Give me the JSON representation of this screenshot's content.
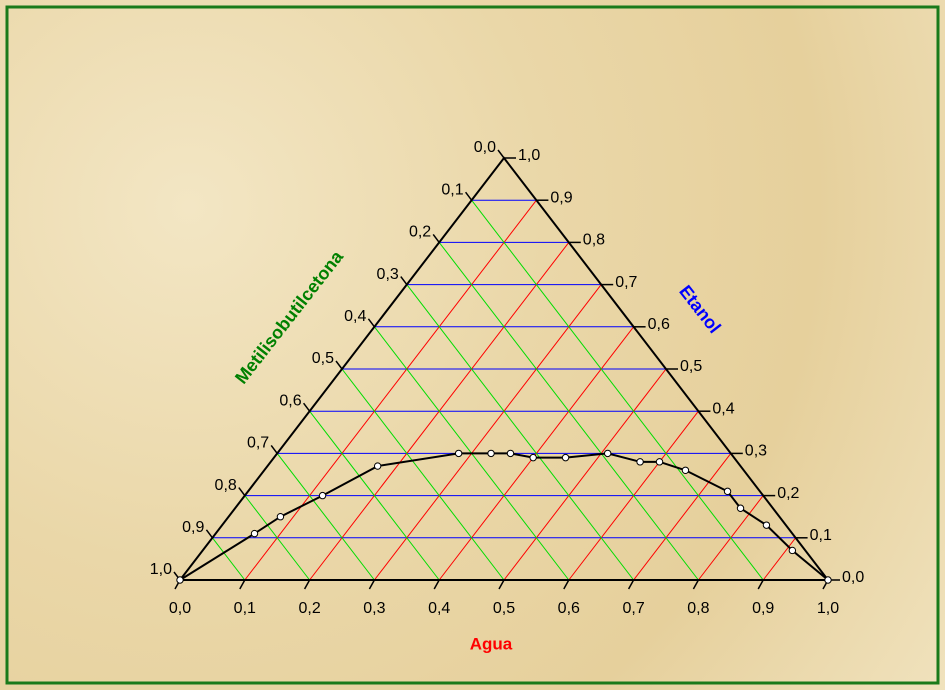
{
  "chart_data": {
    "type": "ternary",
    "axes": {
      "bottom": {
        "label": "Agua",
        "color": "#ff0000",
        "grid_color": "#ff0000",
        "ticks": [
          {
            "value": 0,
            "label": "0,0"
          },
          {
            "value": 0.1,
            "label": "0,1"
          },
          {
            "value": 0.2,
            "label": "0,2"
          },
          {
            "value": 0.3,
            "label": "0,3"
          },
          {
            "value": 0.4,
            "label": "0,4"
          },
          {
            "value": 0.5,
            "label": "0,5"
          },
          {
            "value": 0.6,
            "label": "0,6"
          },
          {
            "value": 0.7,
            "label": "0,7"
          },
          {
            "value": 0.8,
            "label": "0,8"
          },
          {
            "value": 0.9,
            "label": "0,9"
          },
          {
            "value": 1,
            "label": "1,0"
          }
        ]
      },
      "right": {
        "label": "Etanol",
        "color": "#0000ff",
        "grid_color": "#0000ff",
        "ticks": [
          {
            "value": 0,
            "label": "0,0"
          },
          {
            "value": 0.1,
            "label": "0,1"
          },
          {
            "value": 0.2,
            "label": "0,2"
          },
          {
            "value": 0.3,
            "label": "0,3"
          },
          {
            "value": 0.4,
            "label": "0,4"
          },
          {
            "value": 0.5,
            "label": "0,5"
          },
          {
            "value": 0.6,
            "label": "0,6"
          },
          {
            "value": 0.7,
            "label": "0,7"
          },
          {
            "value": 0.8,
            "label": "0,8"
          },
          {
            "value": 0.9,
            "label": "0,9"
          },
          {
            "value": 1,
            "label": "1,0"
          }
        ]
      },
      "left": {
        "label": "Metilisobutilcetona",
        "color": "#008000",
        "grid_color": "#00dd00",
        "ticks": [
          {
            "value": 0,
            "label": "0,0"
          },
          {
            "value": 0.1,
            "label": "0,1"
          },
          {
            "value": 0.2,
            "label": "0,2"
          },
          {
            "value": 0.3,
            "label": "0,3"
          },
          {
            "value": 0.4,
            "label": "0,4"
          },
          {
            "value": 0.5,
            "label": "0,5"
          },
          {
            "value": 0.6,
            "label": "0,6"
          },
          {
            "value": 0.7,
            "label": "0,7"
          },
          {
            "value": 0.8,
            "label": "0,8"
          },
          {
            "value": 0.9,
            "label": "0,9"
          },
          {
            "value": 1,
            "label": "1,0"
          }
        ]
      }
    },
    "series": [
      {
        "color": "#000000",
        "water": [
          0,
          0.06,
          0.08,
          0.12,
          0.17,
          0.28,
          0.33,
          0.36,
          0.4,
          0.45,
          0.51,
          0.57,
          0.6,
          0.65,
          0.74,
          0.78,
          0.84,
          0.91,
          1
        ],
        "ethanol": [
          0,
          0.11,
          0.15,
          0.2,
          0.27,
          0.3,
          0.3,
          0.3,
          0.29,
          0.29,
          0.3,
          0.28,
          0.28,
          0.26,
          0.21,
          0.17,
          0.13,
          0.07,
          0
        ]
      }
    ]
  }
}
